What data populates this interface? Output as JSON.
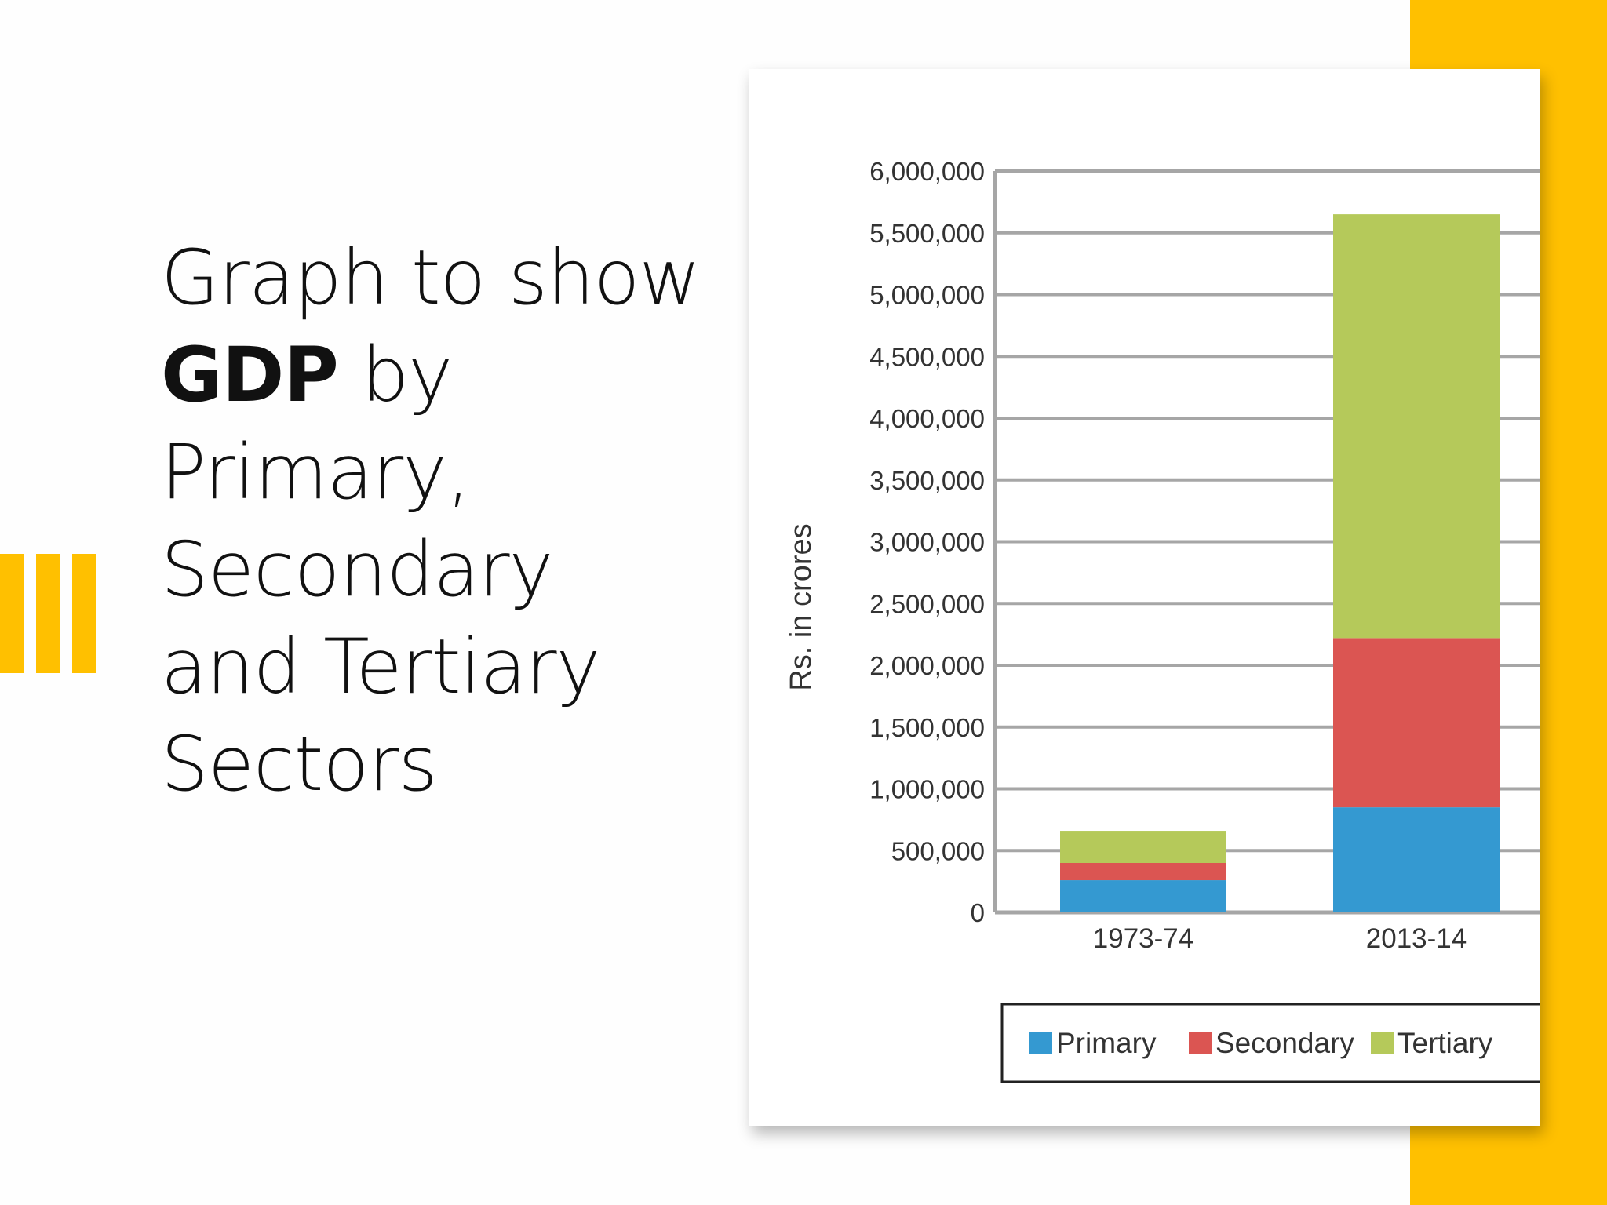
{
  "slide": {
    "title_part1": "Graph to show ",
    "title_bold": "GDP",
    "title_part2": " by Primary, Secondary and Tertiary Sectors"
  },
  "colors": {
    "accent": "#FFC000",
    "primary": "#3499D1",
    "secondary": "#DB5552",
    "tertiary": "#B5C95A",
    "grid": "#A6A6A6"
  },
  "chart_data": {
    "type": "bar",
    "stacked": true,
    "title": "",
    "xlabel": "",
    "ylabel": "Rs. in crores",
    "ylim": [
      0,
      6000000
    ],
    "yticks": [
      0,
      500000,
      1000000,
      1500000,
      2000000,
      2500000,
      3000000,
      3500000,
      4000000,
      4500000,
      5000000,
      5500000,
      6000000
    ],
    "ytick_labels": [
      "0",
      "500,000",
      "1,000,000",
      "1,500,000",
      "2,000,000",
      "2,500,000",
      "3,000,000",
      "3,500,000",
      "4,000,000",
      "4,500,000",
      "5,000,000",
      "5,500,000",
      "6,000,000"
    ],
    "grid": true,
    "categories": [
      "1973-74",
      "2013-14"
    ],
    "series": [
      {
        "name": "Primary",
        "color": "#3499D1",
        "values": [
          260000,
          850000
        ]
      },
      {
        "name": "Secondary",
        "color": "#DB5552",
        "values": [
          140000,
          1370000
        ]
      },
      {
        "name": "Tertiary",
        "color": "#B5C95A",
        "values": [
          260000,
          3430000
        ]
      }
    ],
    "legend": "bottom"
  }
}
